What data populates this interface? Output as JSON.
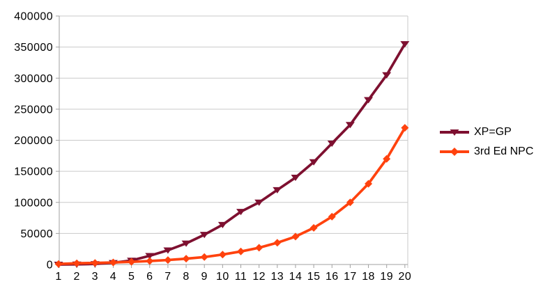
{
  "chart_data": {
    "type": "line",
    "title": "",
    "xlabel": "",
    "ylabel": "",
    "x_categories": [
      "1",
      "2",
      "3",
      "4",
      "5",
      "6",
      "7",
      "8",
      "9",
      "10",
      "11",
      "12",
      "13",
      "14",
      "15",
      "16",
      "17",
      "18",
      "19",
      "20"
    ],
    "series": [
      {
        "name": "XP=GP",
        "color": "#7E1030",
        "marker": "triangle-down",
        "values": [
          0,
          300,
          900,
          2700,
          6500,
          14000,
          23000,
          34000,
          48000,
          64000,
          85000,
          100000,
          120000,
          140000,
          165000,
          195000,
          225000,
          265000,
          305000,
          355000
        ]
      },
      {
        "name": "3rd Ed NPC",
        "color": "#FF420E",
        "marker": "diamond",
        "values": [
          900,
          2000,
          2500,
          3300,
          4300,
          5600,
          7200,
          9400,
          12000,
          16000,
          21000,
          27000,
          35000,
          45000,
          59000,
          77000,
          100000,
          130000,
          170000,
          220000
        ]
      }
    ],
    "ylim": [
      0,
      400000
    ],
    "y_tick_step": 50000,
    "y_tick_labels": [
      "0",
      "50000",
      "100000",
      "150000",
      "200000",
      "250000",
      "300000",
      "350000",
      "400000"
    ],
    "grid": true,
    "legend_position": "right-middle"
  },
  "styles": {
    "background": "#FFFFFF",
    "grid_color": "#C9C9C9",
    "axis_color": "#A0A0A0",
    "text_color": "#000000"
  }
}
